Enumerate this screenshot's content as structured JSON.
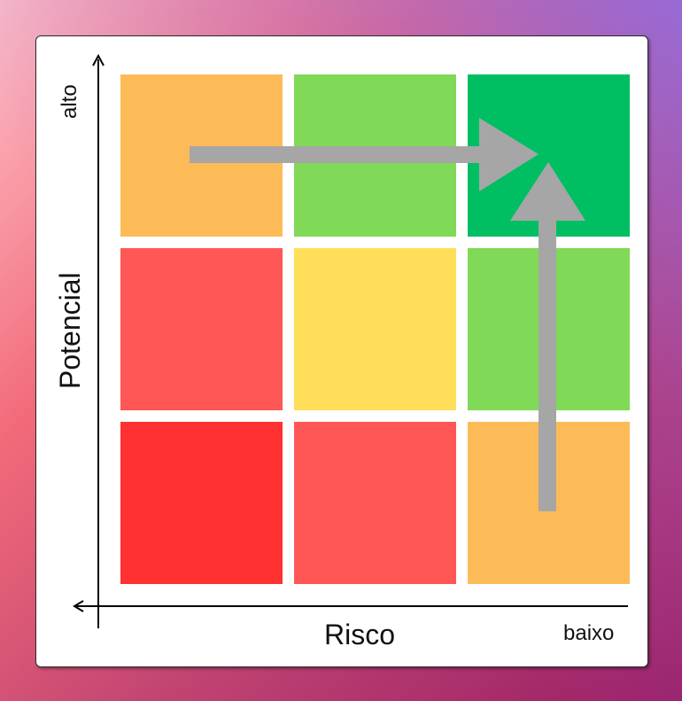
{
  "matrix": {
    "y_axis": {
      "title": "Potencial",
      "high_label": "alto"
    },
    "x_axis": {
      "title": "Risco",
      "low_label": "baixo"
    },
    "cells": [
      {
        "row": "top",
        "col": "left",
        "color": "#FDBB58"
      },
      {
        "row": "top",
        "col": "center",
        "color": "#80D957"
      },
      {
        "row": "top",
        "col": "right",
        "color": "#00BF63"
      },
      {
        "row": "middle",
        "col": "left",
        "color": "#FF5756"
      },
      {
        "row": "middle",
        "col": "center",
        "color": "#FFDE59"
      },
      {
        "row": "middle",
        "col": "right",
        "color": "#80D957"
      },
      {
        "row": "bottom",
        "col": "left",
        "color": "#FF3131"
      },
      {
        "row": "bottom",
        "col": "center",
        "color": "#FF5756"
      },
      {
        "row": "bottom",
        "col": "right",
        "color": "#FDBB58"
      }
    ],
    "arrow_color": "#A6A6A6",
    "arrows": [
      {
        "from": "top-left",
        "to": "top-right",
        "direction": "right"
      },
      {
        "from": "bottom-right",
        "to": "top-right",
        "direction": "up"
      }
    ]
  }
}
